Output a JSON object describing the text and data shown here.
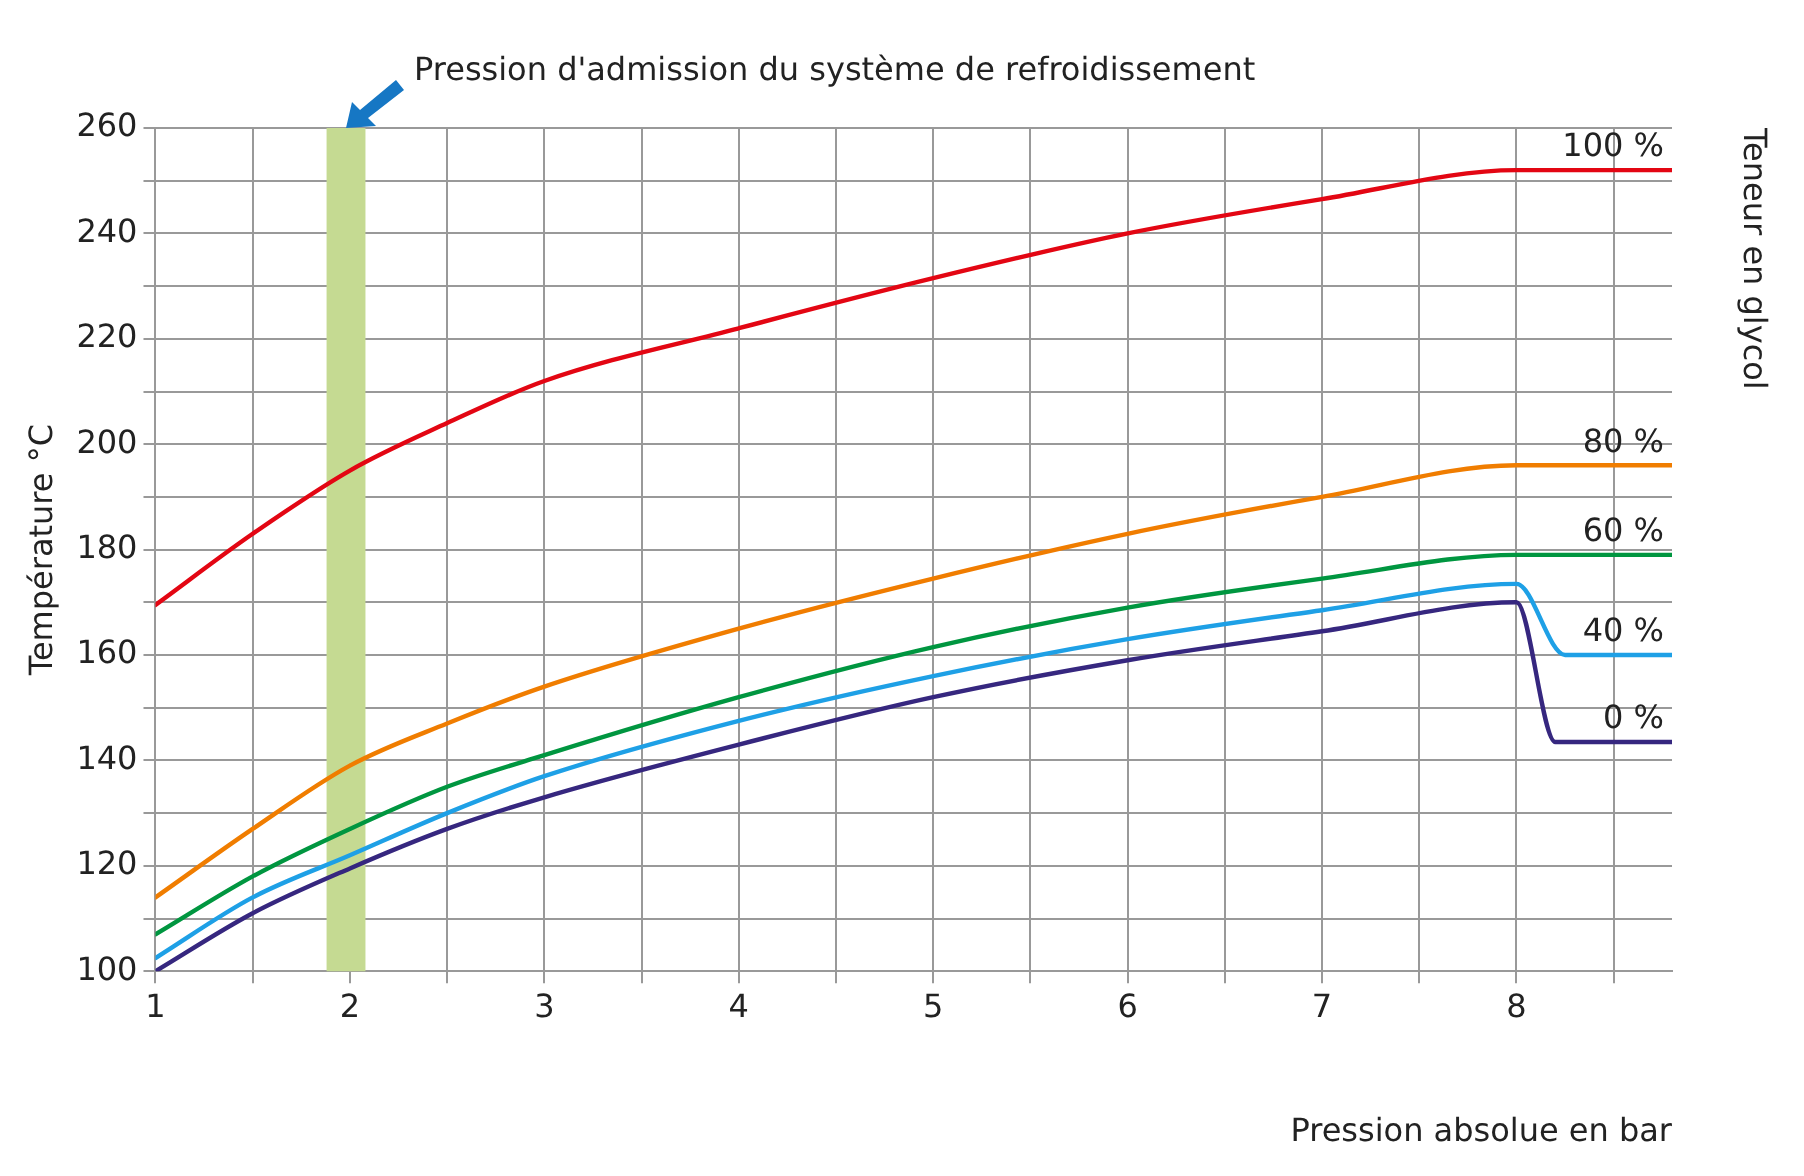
{
  "chart_data": {
    "type": "line",
    "xlabel": "Pression absolue en bar",
    "ylabel": "Température °C",
    "legend_title": "Teneur en glycol",
    "xlim": [
      1,
      8.8
    ],
    "ylim": [
      100,
      260
    ],
    "xticks": [
      1,
      {
        "value": 1.5,
        "label": null
      },
      2,
      {
        "value": 2.5,
        "label": null
      },
      3,
      {
        "value": 3.5,
        "label": null
      },
      4,
      {
        "value": 4.5,
        "label": null
      },
      5,
      {
        "value": 5.5,
        "label": null
      },
      6,
      {
        "value": 6.5,
        "label": null
      },
      7,
      {
        "value": 7.5,
        "label": null
      },
      8,
      {
        "value": 8.5,
        "label": null
      }
    ],
    "yticks": [
      100,
      {
        "value": 110,
        "label": null
      },
      120,
      {
        "value": 130,
        "label": null
      },
      140,
      {
        "value": 150,
        "label": null
      },
      160,
      {
        "value": 170,
        "label": null
      },
      180,
      {
        "value": 190,
        "label": null
      },
      200,
      {
        "value": 210,
        "label": null
      },
      220,
      {
        "value": 230,
        "label": null
      },
      240,
      {
        "value": 250,
        "label": null
      },
      260
    ],
    "grid": true,
    "legend": false,
    "marker": "none",
    "line_style": "solid",
    "bands": [
      {
        "axis": "x",
        "from": 1.88,
        "to": 2.08,
        "label": "Pression d'admission du système de refroidissement",
        "color": "#c5da92"
      }
    ],
    "series": [
      {
        "name": "100 %",
        "color": "#e30613",
        "x": [
          1,
          1.5,
          2,
          2.5,
          3,
          4,
          5,
          6,
          7,
          8,
          8.8
        ],
        "values": [
          169.5,
          183,
          195,
          204,
          212,
          222,
          231.5,
          240,
          246.5,
          252,
          252
        ]
      },
      {
        "name": "80 %",
        "color": "#f07d00",
        "x": [
          1,
          1.5,
          2,
          2.5,
          3,
          4,
          5,
          6,
          7,
          8,
          8.8
        ],
        "values": [
          114,
          127,
          139,
          147,
          154,
          165,
          174.5,
          183,
          190,
          196,
          196
        ]
      },
      {
        "name": "60 %",
        "color": "#009640",
        "x": [
          1,
          1.5,
          2,
          2.5,
          3,
          4,
          5,
          6,
          7,
          8,
          8.8
        ],
        "values": [
          107,
          118,
          127,
          135,
          141,
          152,
          161.5,
          169,
          174.5,
          179,
          179
        ]
      },
      {
        "name": "40 %",
        "color": "#1ea0e6",
        "x": [
          1,
          1.5,
          2,
          2.5,
          3,
          4,
          5,
          6,
          7,
          8,
          8.25,
          8.8
        ],
        "values": [
          102.5,
          114,
          122,
          130,
          137,
          147.5,
          156,
          163,
          168.5,
          173.5,
          160,
          160
        ]
      },
      {
        "name": "0 %",
        "color": "#36277f",
        "x": [
          1,
          1.5,
          2,
          2.5,
          3,
          4,
          5,
          6,
          7,
          8,
          8.2,
          8.8
        ],
        "values": [
          100,
          111,
          119.5,
          127,
          133,
          143,
          152,
          159,
          164.5,
          170,
          143.5,
          143.5
        ]
      }
    ]
  }
}
